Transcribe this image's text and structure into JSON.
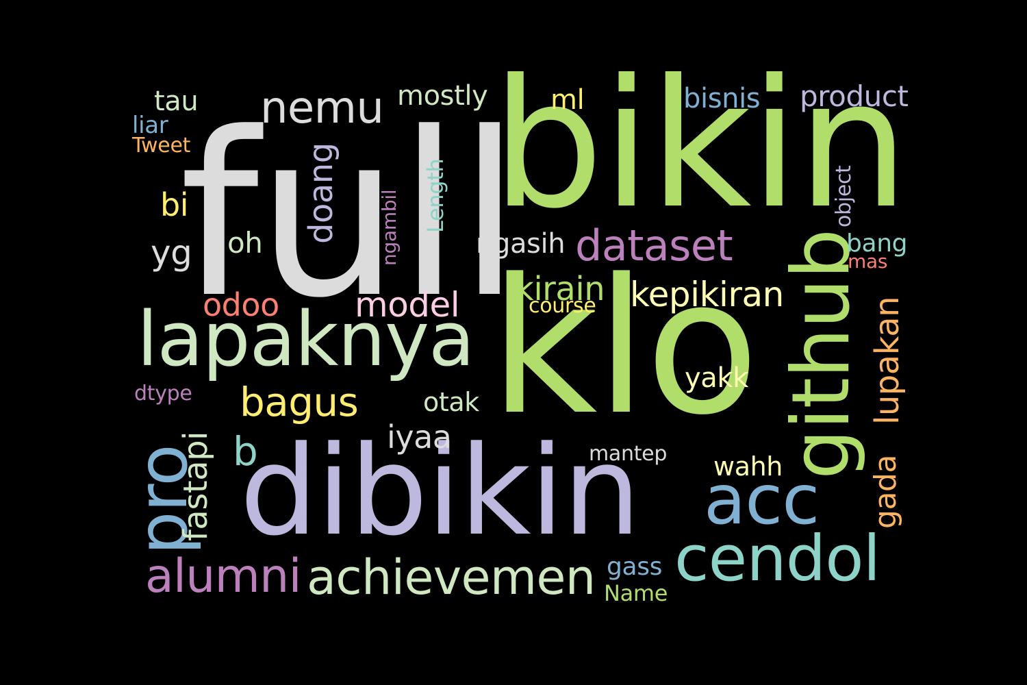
{
  "words": [
    {
      "text": "full",
      "color": "#dcdcdc"
    },
    {
      "text": "bikin",
      "color": "#b1dd6b"
    },
    {
      "text": "klo",
      "color": "#b1dd6b"
    },
    {
      "text": "dibikin",
      "color": "#bdb8dd"
    },
    {
      "text": "lapaknya",
      "color": "#cfe8c2"
    },
    {
      "text": "github",
      "color": "#b1dd6b"
    },
    {
      "text": "pro",
      "color": "#80b1d3"
    },
    {
      "text": "acc",
      "color": "#80b1d3"
    },
    {
      "text": "cendol",
      "color": "#8dd3c7"
    },
    {
      "text": "achievemen",
      "color": "#cfe8c2"
    },
    {
      "text": "alumni",
      "color": "#bc80bd"
    },
    {
      "text": "nemu",
      "color": "#dcdcdc"
    },
    {
      "text": "dataset",
      "color": "#bc80bd"
    },
    {
      "text": "kepikiran",
      "color": "#ffffb3"
    },
    {
      "text": "bagus",
      "color": "#ffed6f"
    },
    {
      "text": "model",
      "color": "#fccde5"
    },
    {
      "text": "doang",
      "color": "#bdb8dd"
    },
    {
      "text": "odoo",
      "color": "#fb8072"
    },
    {
      "text": "kirain",
      "color": "#b1dd6b"
    },
    {
      "text": "lupakan",
      "color": "#fdb462"
    },
    {
      "text": "gada",
      "color": "#fdb462"
    },
    {
      "text": "fastapi",
      "color": "#cfe8c2"
    },
    {
      "text": "iyaa",
      "color": "#dcdcdc"
    },
    {
      "text": "mostly",
      "color": "#cfe8c2"
    },
    {
      "text": "product",
      "color": "#bdb8dd"
    },
    {
      "text": "yakk",
      "color": "#ffffb3"
    },
    {
      "text": "b",
      "color": "#8dd3c7"
    },
    {
      "text": "bisnis",
      "color": "#80b1d3"
    },
    {
      "text": "tau",
      "color": "#cfe8c2"
    },
    {
      "text": "oh",
      "color": "#cfe8c2"
    },
    {
      "text": "yg",
      "color": "#dcdcdc"
    },
    {
      "text": "bi",
      "color": "#ffed6f"
    },
    {
      "text": "ngasih",
      "color": "#dcdcdc"
    },
    {
      "text": "otak",
      "color": "#cfe8c2"
    },
    {
      "text": "wahh",
      "color": "#ffffb3"
    },
    {
      "text": "mantep",
      "color": "#dcdcdc"
    },
    {
      "text": "bang",
      "color": "#8dd3c7"
    },
    {
      "text": "ml",
      "color": "#ffed6f"
    },
    {
      "text": "gass",
      "color": "#80b1d3"
    },
    {
      "text": "course",
      "color": "#ffed6f"
    },
    {
      "text": "Length",
      "color": "#8dd3c7"
    },
    {
      "text": "object",
      "color": "#bdb8dd"
    },
    {
      "text": "ngambil",
      "color": "#bc80bd"
    },
    {
      "text": "Name",
      "color": "#b1dd6b"
    },
    {
      "text": "liar",
      "color": "#80b1d3"
    },
    {
      "text": "dtype",
      "color": "#bc80bd"
    },
    {
      "text": "Tweet",
      "color": "#fdb462"
    },
    {
      "text": "mas",
      "color": "#fb8072"
    }
  ]
}
